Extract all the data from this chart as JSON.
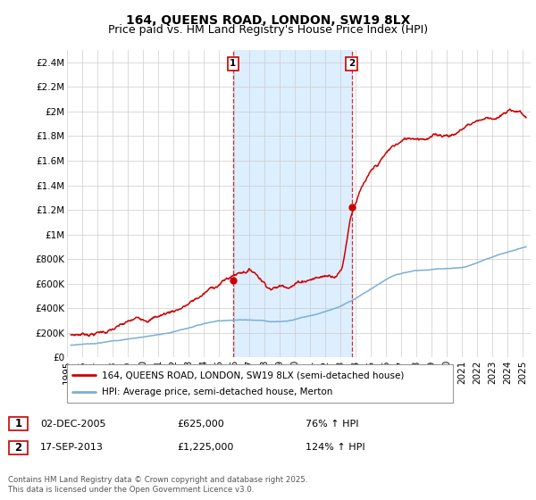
{
  "title": "164, QUEENS ROAD, LONDON, SW19 8LX",
  "subtitle": "Price paid vs. HM Land Registry's House Price Index (HPI)",
  "ylim": [
    0,
    2500000
  ],
  "yticks": [
    0,
    200000,
    400000,
    600000,
    800000,
    1000000,
    1200000,
    1400000,
    1600000,
    1800000,
    2000000,
    2200000,
    2400000
  ],
  "ytick_labels": [
    "£0",
    "£200K",
    "£400K",
    "£600K",
    "£800K",
    "£1M",
    "£1.2M",
    "£1.4M",
    "£1.6M",
    "£1.8M",
    "£2M",
    "£2.2M",
    "£2.4M"
  ],
  "xlim_start": 1995.0,
  "xlim_end": 2025.5,
  "sale1_x": 2005.92,
  "sale1_y": 625000,
  "sale2_x": 2013.72,
  "sale2_y": 1225000,
  "red_line_color": "#cc0000",
  "blue_line_color": "#7bafd4",
  "shade_color": "#ddeeff",
  "grid_color": "#cccccc",
  "legend_red_label": "164, QUEENS ROAD, LONDON, SW19 8LX (semi-detached house)",
  "legend_blue_label": "HPI: Average price, semi-detached house, Merton",
  "sale1_date": "02-DEC-2005",
  "sale1_price": "£625,000",
  "sale1_hpi": "76% ↑ HPI",
  "sale2_date": "17-SEP-2013",
  "sale2_price": "£1,225,000",
  "sale2_hpi": "124% ↑ HPI",
  "footer": "Contains HM Land Registry data © Crown copyright and database right 2025.\nThis data is licensed under the Open Government Licence v3.0.",
  "title_fontsize": 10,
  "subtitle_fontsize": 9,
  "tick_fontsize": 7.5,
  "legend_fontsize": 7.5,
  "red_key_x": [
    1995.25,
    1997.0,
    1999.0,
    2001.0,
    2003.0,
    2005.92,
    2007.0,
    2008.5,
    2009.5,
    2011.0,
    2012.5,
    2013.0,
    2013.72,
    2014.5,
    2015.5,
    2016.5,
    2017.5,
    2018.5,
    2019.5,
    2020.5,
    2021.5,
    2022.5,
    2023.5,
    2024.5,
    2025.2
  ],
  "red_key_y": [
    185000,
    210000,
    260000,
    320000,
    420000,
    625000,
    680000,
    560000,
    590000,
    660000,
    700000,
    750000,
    1225000,
    1450000,
    1580000,
    1700000,
    1750000,
    1780000,
    1800000,
    1820000,
    1900000,
    1950000,
    1970000,
    2000000,
    1950000
  ],
  "blue_key_x": [
    1995.25,
    1997.0,
    1999.0,
    2001.0,
    2003.0,
    2005.0,
    2007.0,
    2009.0,
    2011.0,
    2013.0,
    2015.0,
    2017.0,
    2019.0,
    2021.0,
    2023.0,
    2025.2
  ],
  "blue_key_y": [
    100000,
    125000,
    158000,
    195000,
    245000,
    290000,
    305000,
    295000,
    340000,
    420000,
    560000,
    680000,
    710000,
    730000,
    820000,
    900000
  ]
}
